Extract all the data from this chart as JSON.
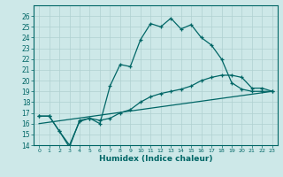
{
  "xlabel": "Humidex (Indice chaleur)",
  "bg_color": "#cde8e8",
  "line_color": "#006666",
  "grid_color": "#b0d0d0",
  "xlim": [
    -0.5,
    23.5
  ],
  "ylim": [
    14,
    27
  ],
  "yticks": [
    14,
    15,
    16,
    17,
    18,
    19,
    20,
    21,
    22,
    23,
    24,
    25,
    26
  ],
  "xticks": [
    0,
    1,
    2,
    3,
    4,
    5,
    6,
    7,
    8,
    9,
    10,
    11,
    12,
    13,
    14,
    15,
    16,
    17,
    18,
    19,
    20,
    21,
    22,
    23
  ],
  "series1_x": [
    0,
    1,
    2,
    3,
    4,
    5,
    6,
    7,
    8,
    9,
    10,
    11,
    12,
    13,
    14,
    15,
    16,
    17,
    18,
    19,
    20,
    21,
    22,
    23
  ],
  "series1_y": [
    16.7,
    16.7,
    15.3,
    13.8,
    16.3,
    16.5,
    16.0,
    19.5,
    21.5,
    21.3,
    23.8,
    25.3,
    25.0,
    25.8,
    24.8,
    25.2,
    24.0,
    23.3,
    22.0,
    19.8,
    19.2,
    19.0,
    19.0,
    19.0
  ],
  "series2_x": [
    0,
    1,
    2,
    3,
    4,
    5,
    6,
    7,
    8,
    9,
    10,
    11,
    12,
    13,
    14,
    15,
    16,
    17,
    18,
    19,
    20,
    21,
    22,
    23
  ],
  "series2_y": [
    16.7,
    16.7,
    15.3,
    14.0,
    16.2,
    16.5,
    16.3,
    16.5,
    17.0,
    17.3,
    18.0,
    18.5,
    18.8,
    19.0,
    19.2,
    19.5,
    20.0,
    20.3,
    20.5,
    20.5,
    20.3,
    19.3,
    19.3,
    19.0
  ],
  "series3_x": [
    0,
    23
  ],
  "series3_y": [
    16.0,
    19.0
  ]
}
